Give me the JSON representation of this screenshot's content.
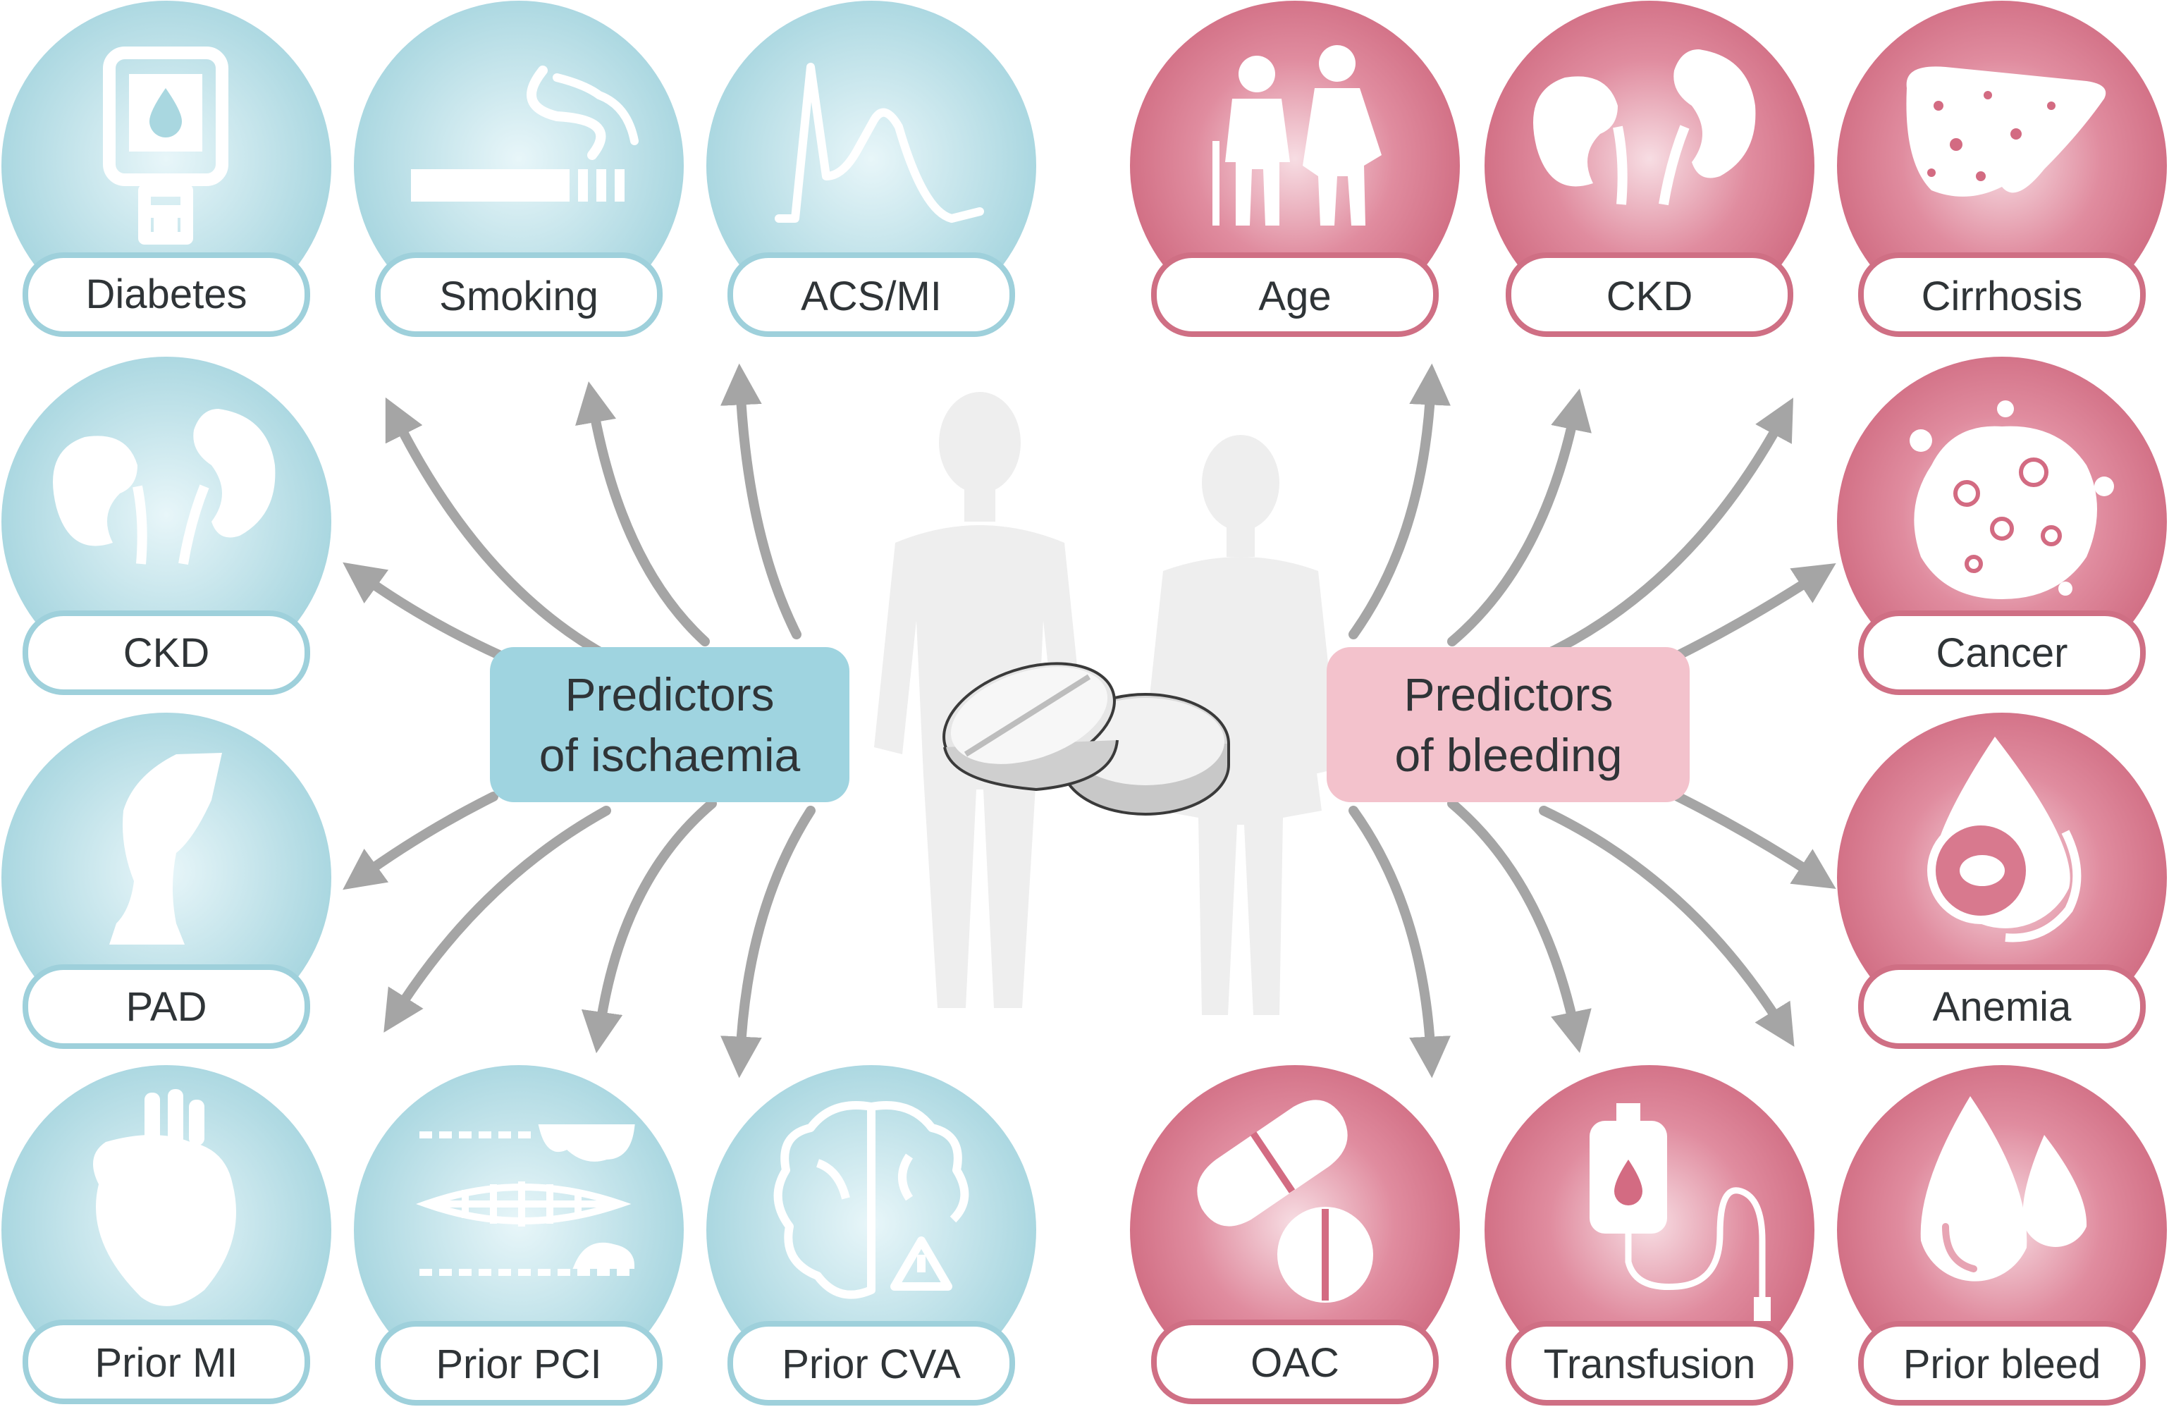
{
  "colors": {
    "ischaemia_circle": "#a9d7e0",
    "ischaemia_border": "#9ed0db",
    "ischaemia_hub": "#9fd4e0",
    "bleeding_circle": "#d36b82",
    "bleeding_border": "#cf6f84",
    "bleeding_hub": "#f3c2cc",
    "arrow": "#a5a5a5",
    "silhouette": "#eeeeee",
    "label_text": "#2f3437"
  },
  "ischaemia": {
    "hub_lines": [
      "Predictors",
      "of ischaemia"
    ],
    "nodes": [
      {
        "label": "Diabetes",
        "icon": "glucose-meter-icon"
      },
      {
        "label": "Smoking",
        "icon": "cigarette-icon"
      },
      {
        "label": "ACS/MI",
        "icon": "ecg-wave-icon"
      },
      {
        "label": "CKD",
        "icon": "kidneys-icon"
      },
      {
        "label": "PAD",
        "icon": "leg-icon"
      },
      {
        "label": "Prior MI",
        "icon": "heart-icon"
      },
      {
        "label": "Prior PCI",
        "icon": "stent-icon"
      },
      {
        "label": "Prior CVA",
        "icon": "brain-warning-icon"
      }
    ]
  },
  "bleeding": {
    "hub_lines": [
      "Predictors",
      "of bleeding"
    ],
    "nodes": [
      {
        "label": "Age",
        "icon": "elderly-couple-icon"
      },
      {
        "label": "CKD",
        "icon": "kidneys-icon"
      },
      {
        "label": "Cirrhosis",
        "icon": "liver-icon"
      },
      {
        "label": "Cancer",
        "icon": "tumor-cell-icon"
      },
      {
        "label": "Anemia",
        "icon": "blood-cell-drop-icon"
      },
      {
        "label": "Prior bleed",
        "icon": "blood-drops-icon"
      },
      {
        "label": "Transfusion",
        "icon": "transfusion-bag-icon"
      },
      {
        "label": "OAC",
        "icon": "pills-icon"
      }
    ]
  },
  "center": {
    "icon": "tablets-icon",
    "figures": "people-silhouettes-icon"
  }
}
